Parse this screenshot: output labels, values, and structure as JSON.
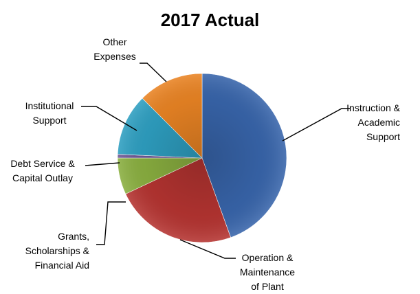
{
  "chart_data": {
    "type": "pie",
    "title": "2017 Actual",
    "slices": [
      {
        "label": [
          "Instruction &",
          "Academic",
          "Support"
        ],
        "value": 44.5,
        "color": "#3865AB"
      },
      {
        "label": [
          "Operation &",
          "Maintenance",
          "of Plant"
        ],
        "value": 23.5,
        "color": "#B53431"
      },
      {
        "label": [
          "Grants,",
          "Scholarships &",
          "Financial Aid"
        ],
        "value": 7.0,
        "color": "#8AAF40"
      },
      {
        "label": [
          "Debt Service &",
          "Capital Outlay"
        ],
        "value": 0.7,
        "color": "#6E5895"
      },
      {
        "label": [
          "Institutional",
          "Support"
        ],
        "value": 11.8,
        "color": "#2E9FC1"
      },
      {
        "label": [
          "Other",
          "Expenses"
        ],
        "value": 12.5,
        "color": "#EA8424"
      }
    ]
  }
}
